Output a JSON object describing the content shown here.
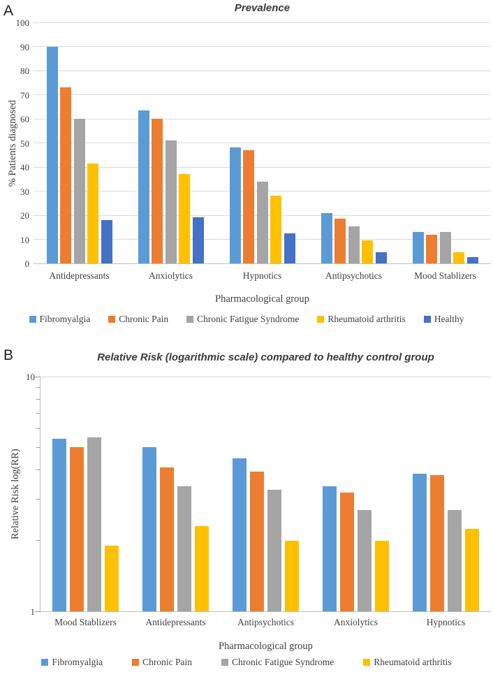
{
  "figure": {
    "panel_a_letter": "A",
    "panel_b_letter": "B"
  },
  "colors": {
    "fibromyalgia": "#5B9BD5",
    "chronic_pain": "#ED7D31",
    "chronic_fatigue_syndrome": "#A5A5A5",
    "rheumatoid_arthritis": "#FFC000",
    "healthy": "#4472C4",
    "gridline": "#D9D9D9",
    "axis_line": "#BFBFBF",
    "text": "#404040"
  },
  "chart_data": [
    {
      "type": "bar",
      "panel": "A",
      "title": "Prevalence",
      "xlabel": "Pharmacological group",
      "ylabel": "% Patients diagnosed",
      "scale": "linear",
      "ylim": [
        0,
        100
      ],
      "yticks": [
        0,
        10,
        20,
        30,
        40,
        50,
        60,
        70,
        80,
        90,
        100
      ],
      "grid": true,
      "legend_position": "bottom",
      "categories": [
        "Antidepressants",
        "Anxiolytics",
        "Hypnotics",
        "Antipsychotics",
        "Mood Stablizers"
      ],
      "series": [
        {
          "name": "Fibromyalgia",
          "color": "#5B9BD5",
          "values": [
            90,
            63.5,
            48,
            21,
            13
          ]
        },
        {
          "name": "Chronic Pain",
          "color": "#ED7D31",
          "values": [
            73,
            60,
            47,
            18.5,
            12
          ]
        },
        {
          "name": "Chronic Fatigue Syndrome",
          "color": "#A5A5A5",
          "values": [
            60,
            51,
            34,
            15.5,
            13
          ]
        },
        {
          "name": "Rheumatoid arthritis",
          "color": "#FFC000",
          "values": [
            41.5,
            37,
            28,
            9.5,
            4.5
          ]
        },
        {
          "name": "Healthy",
          "color": "#4472C4",
          "values": [
            18,
            19,
            12.5,
            4.5,
            2.5
          ]
        }
      ]
    },
    {
      "type": "bar",
      "panel": "B",
      "title": "Relative Risk (logarithmic scale) compared to healthy control group",
      "xlabel": "Pharmacological group",
      "ylabel": "Relative Risk log(RR)",
      "scale": "log",
      "ylim": [
        1,
        10
      ],
      "yticks": [
        1,
        10
      ],
      "minor_ticks": [
        2,
        3,
        4,
        5,
        6,
        7,
        8,
        9
      ],
      "grid": true,
      "legend_position": "bottom",
      "categories": [
        "Mood Stablizers",
        "Antidepressants",
        "Antipsychotics",
        "Anxiolytics",
        "Hypnotics"
      ],
      "series": [
        {
          "name": "Fibromyalgia",
          "color": "#5B9BD5",
          "values": [
            5.45,
            5.0,
            4.5,
            3.4,
            3.85
          ]
        },
        {
          "name": "Chronic Pain",
          "color": "#ED7D31",
          "values": [
            5.0,
            4.1,
            3.95,
            3.2,
            3.8
          ]
        },
        {
          "name": "Chronic Fatigue Syndrome",
          "color": "#A5A5A5",
          "values": [
            5.5,
            3.4,
            3.3,
            2.7,
            2.7
          ]
        },
        {
          "name": "Rheumatoid arthritis",
          "color": "#FFC000",
          "values": [
            1.9,
            2.3,
            2.0,
            2.0,
            2.25
          ]
        }
      ]
    }
  ]
}
